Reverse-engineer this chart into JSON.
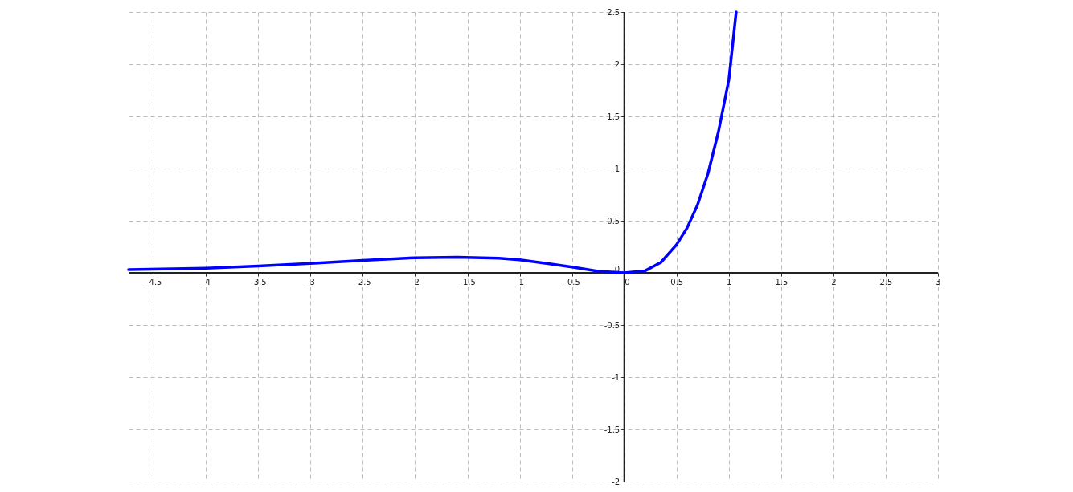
{
  "chart_data": {
    "type": "line",
    "x": [
      -4.74,
      -4,
      -3.5,
      -3,
      -2.5,
      -2,
      -1.6,
      -1.2,
      -1,
      -0.7,
      -0.5,
      -0.25,
      0,
      0.2,
      0.35,
      0.5,
      0.6,
      0.7,
      0.8,
      0.9,
      1,
      1.07
    ],
    "series": [
      {
        "color": "#0000ff",
        "values": [
          0.03,
          0.045,
          0.065,
          0.09,
          0.12,
          0.145,
          0.15,
          0.14,
          0.125,
          0.085,
          0.055,
          0.015,
          0,
          0.02,
          0.1,
          0.27,
          0.43,
          0.65,
          0.95,
          1.35,
          1.85,
          2.5
        ]
      }
    ],
    "xlim": [
      -4.74,
      3
    ],
    "ylim": [
      -2,
      2.5
    ],
    "xticks": [
      -4.5,
      -4,
      -3.5,
      -3,
      -2.5,
      -2,
      -1.5,
      -1,
      -0.5,
      0,
      0.5,
      1,
      1.5,
      2,
      2.5,
      3
    ],
    "yticks": [
      -2,
      -1.5,
      -1,
      -0.5,
      0,
      0.5,
      1,
      1.5,
      2,
      2.5
    ],
    "grid": true,
    "line_style": "solid",
    "marker": "none"
  }
}
